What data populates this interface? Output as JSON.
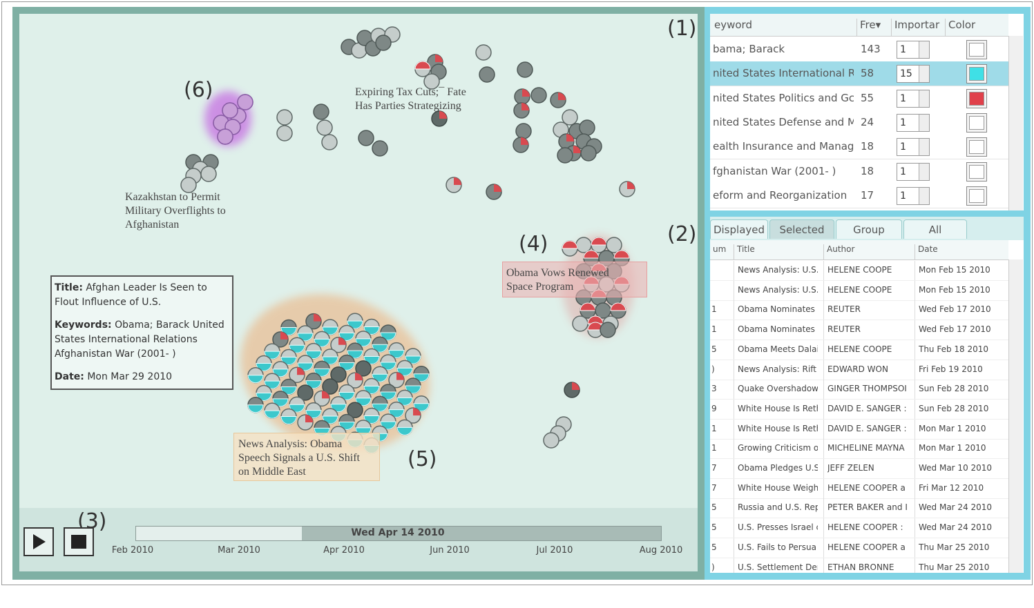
{
  "markers": [
    "(1)",
    "(2)",
    "(3)",
    "(4)",
    "(5)",
    "(6)"
  ],
  "map_labels": [
    {
      "lines": [
        "Expiring Tax Cuts;¯ Fate",
        "Has Parties Strategizing"
      ]
    },
    {
      "lines": [
        "Kazakhstan to Permit",
        "Military Overflights to",
        "Afghanistan"
      ]
    },
    {
      "lines": [
        "Obama Vows Renewed",
        "Space Program"
      ]
    },
    {
      "lines": [
        "News Analysis: Obama",
        "Speech Signals a U.S. Shift",
        "on Middle East"
      ]
    }
  ],
  "tooltip": {
    "title_label": "Title:",
    "title": "Afghan Leader Is Seen to Flout Influence of U.S.",
    "keywords_label": "Keywords:",
    "keywords": "Obama; Barack United States International Relations Afghanistan War (2001- )",
    "date_label": "Date:",
    "date": "Mon Mar 29 2010"
  },
  "timeline": {
    "current": "Wed Apr 14 2010",
    "ticks": [
      "Feb 2010",
      "Mar 2010",
      "Apr 2010",
      "Jun 2010",
      "Jul 2010",
      "Aug 2010"
    ]
  },
  "keywords_table": {
    "headers": [
      "eyword",
      "Fre▾",
      "Importar",
      "Color"
    ],
    "rows": [
      {
        "keyword": "bama; Barack",
        "freq": 143,
        "importance": 1,
        "color": "#ffffff"
      },
      {
        "keyword": "nited States International R",
        "freq": 58,
        "importance": 15,
        "color": "#3fe0e6"
      },
      {
        "keyword": "nited States Politics and Gc",
        "freq": 55,
        "importance": 1,
        "color": "#e0404a"
      },
      {
        "keyword": "nited States Defense and M",
        "freq": 24,
        "importance": 1,
        "color": "#ffffff"
      },
      {
        "keyword": "ealth Insurance and Manag",
        "freq": 18,
        "importance": 1,
        "color": "#ffffff"
      },
      {
        "keyword": "fghanistan War (2001- )",
        "freq": 18,
        "importance": 1,
        "color": "#ffffff"
      },
      {
        "keyword": "eform and Reorganization",
        "freq": 17,
        "importance": 1,
        "color": "#ffffff"
      }
    ]
  },
  "tabs": [
    "Displayed",
    "Selected",
    "Group",
    "All"
  ],
  "articles_table": {
    "headers": [
      "um",
      "Title",
      "Author",
      "Date"
    ],
    "rows": [
      {
        "title": "News Analysis: U.S.",
        "author": "HELENE COOPE",
        "date": "Mon Feb 15 2010"
      },
      {
        "title": "News Analysis: U.S.",
        "author": "HELENE COOPE",
        "date": "Mon Feb 15 2010"
      },
      {
        "num": "1",
        "title": "Obama Nominates E",
        "author": "REUTER",
        "date": "Wed Feb 17 2010"
      },
      {
        "num": "1",
        "title": "Obama Nominates E",
        "author": "REUTER",
        "date": "Wed Feb 17 2010"
      },
      {
        "num": "5",
        "title": "Obama Meets Dalai L",
        "author": "HELENE COOPE",
        "date": "Thu Feb 18 2010"
      },
      {
        "num": ")",
        "title": "News Analysis: Rift",
        "author": "EDWARD WON",
        "date": "Fri Feb 19 2010"
      },
      {
        "num": "3",
        "title": "Quake Overshadows",
        "author": "GINGER THOMPSOI",
        "date": "Sun Feb 28 2010"
      },
      {
        "num": "9",
        "title": "White House Is Reth",
        "author": "DAVID E. SANGER :",
        "date": "Sun Feb 28 2010"
      },
      {
        "num": "1",
        "title": "White House Is Reth",
        "author": "DAVID E. SANGER :",
        "date": "Mon Mar 1 2010"
      },
      {
        "num": "1",
        "title": "Growing Criticism of",
        "author": "MICHELINE MAYNA",
        "date": "Mon Mar 1 2010"
      },
      {
        "num": "7",
        "title": "Obama Pledges U.S.",
        "author": "JEFF ZELEN",
        "date": "Wed Mar 10 2010"
      },
      {
        "num": "7",
        "title": "White House Weighs",
        "author": "HELENE COOPER a",
        "date": "Fri Mar 12 2010"
      },
      {
        "num": "5",
        "title": "Russia and U.S. Rep",
        "author": "PETER BAKER and I",
        "date": "Wed Mar 24 2010"
      },
      {
        "num": "5",
        "title": "U.S. Presses Israel c",
        "author": "HELENE COOPER :",
        "date": "Wed Mar 24 2010"
      },
      {
        "num": "5",
        "title": "U.S. Fails to Persua",
        "author": "HELENE COOPER a",
        "date": "Thu Mar 25 2010"
      },
      {
        "num": ")",
        "title": "U.S. Settlement Dem",
        "author": "ETHAN BRONNE",
        "date": "Thu Mar 25 2010"
      }
    ]
  }
}
